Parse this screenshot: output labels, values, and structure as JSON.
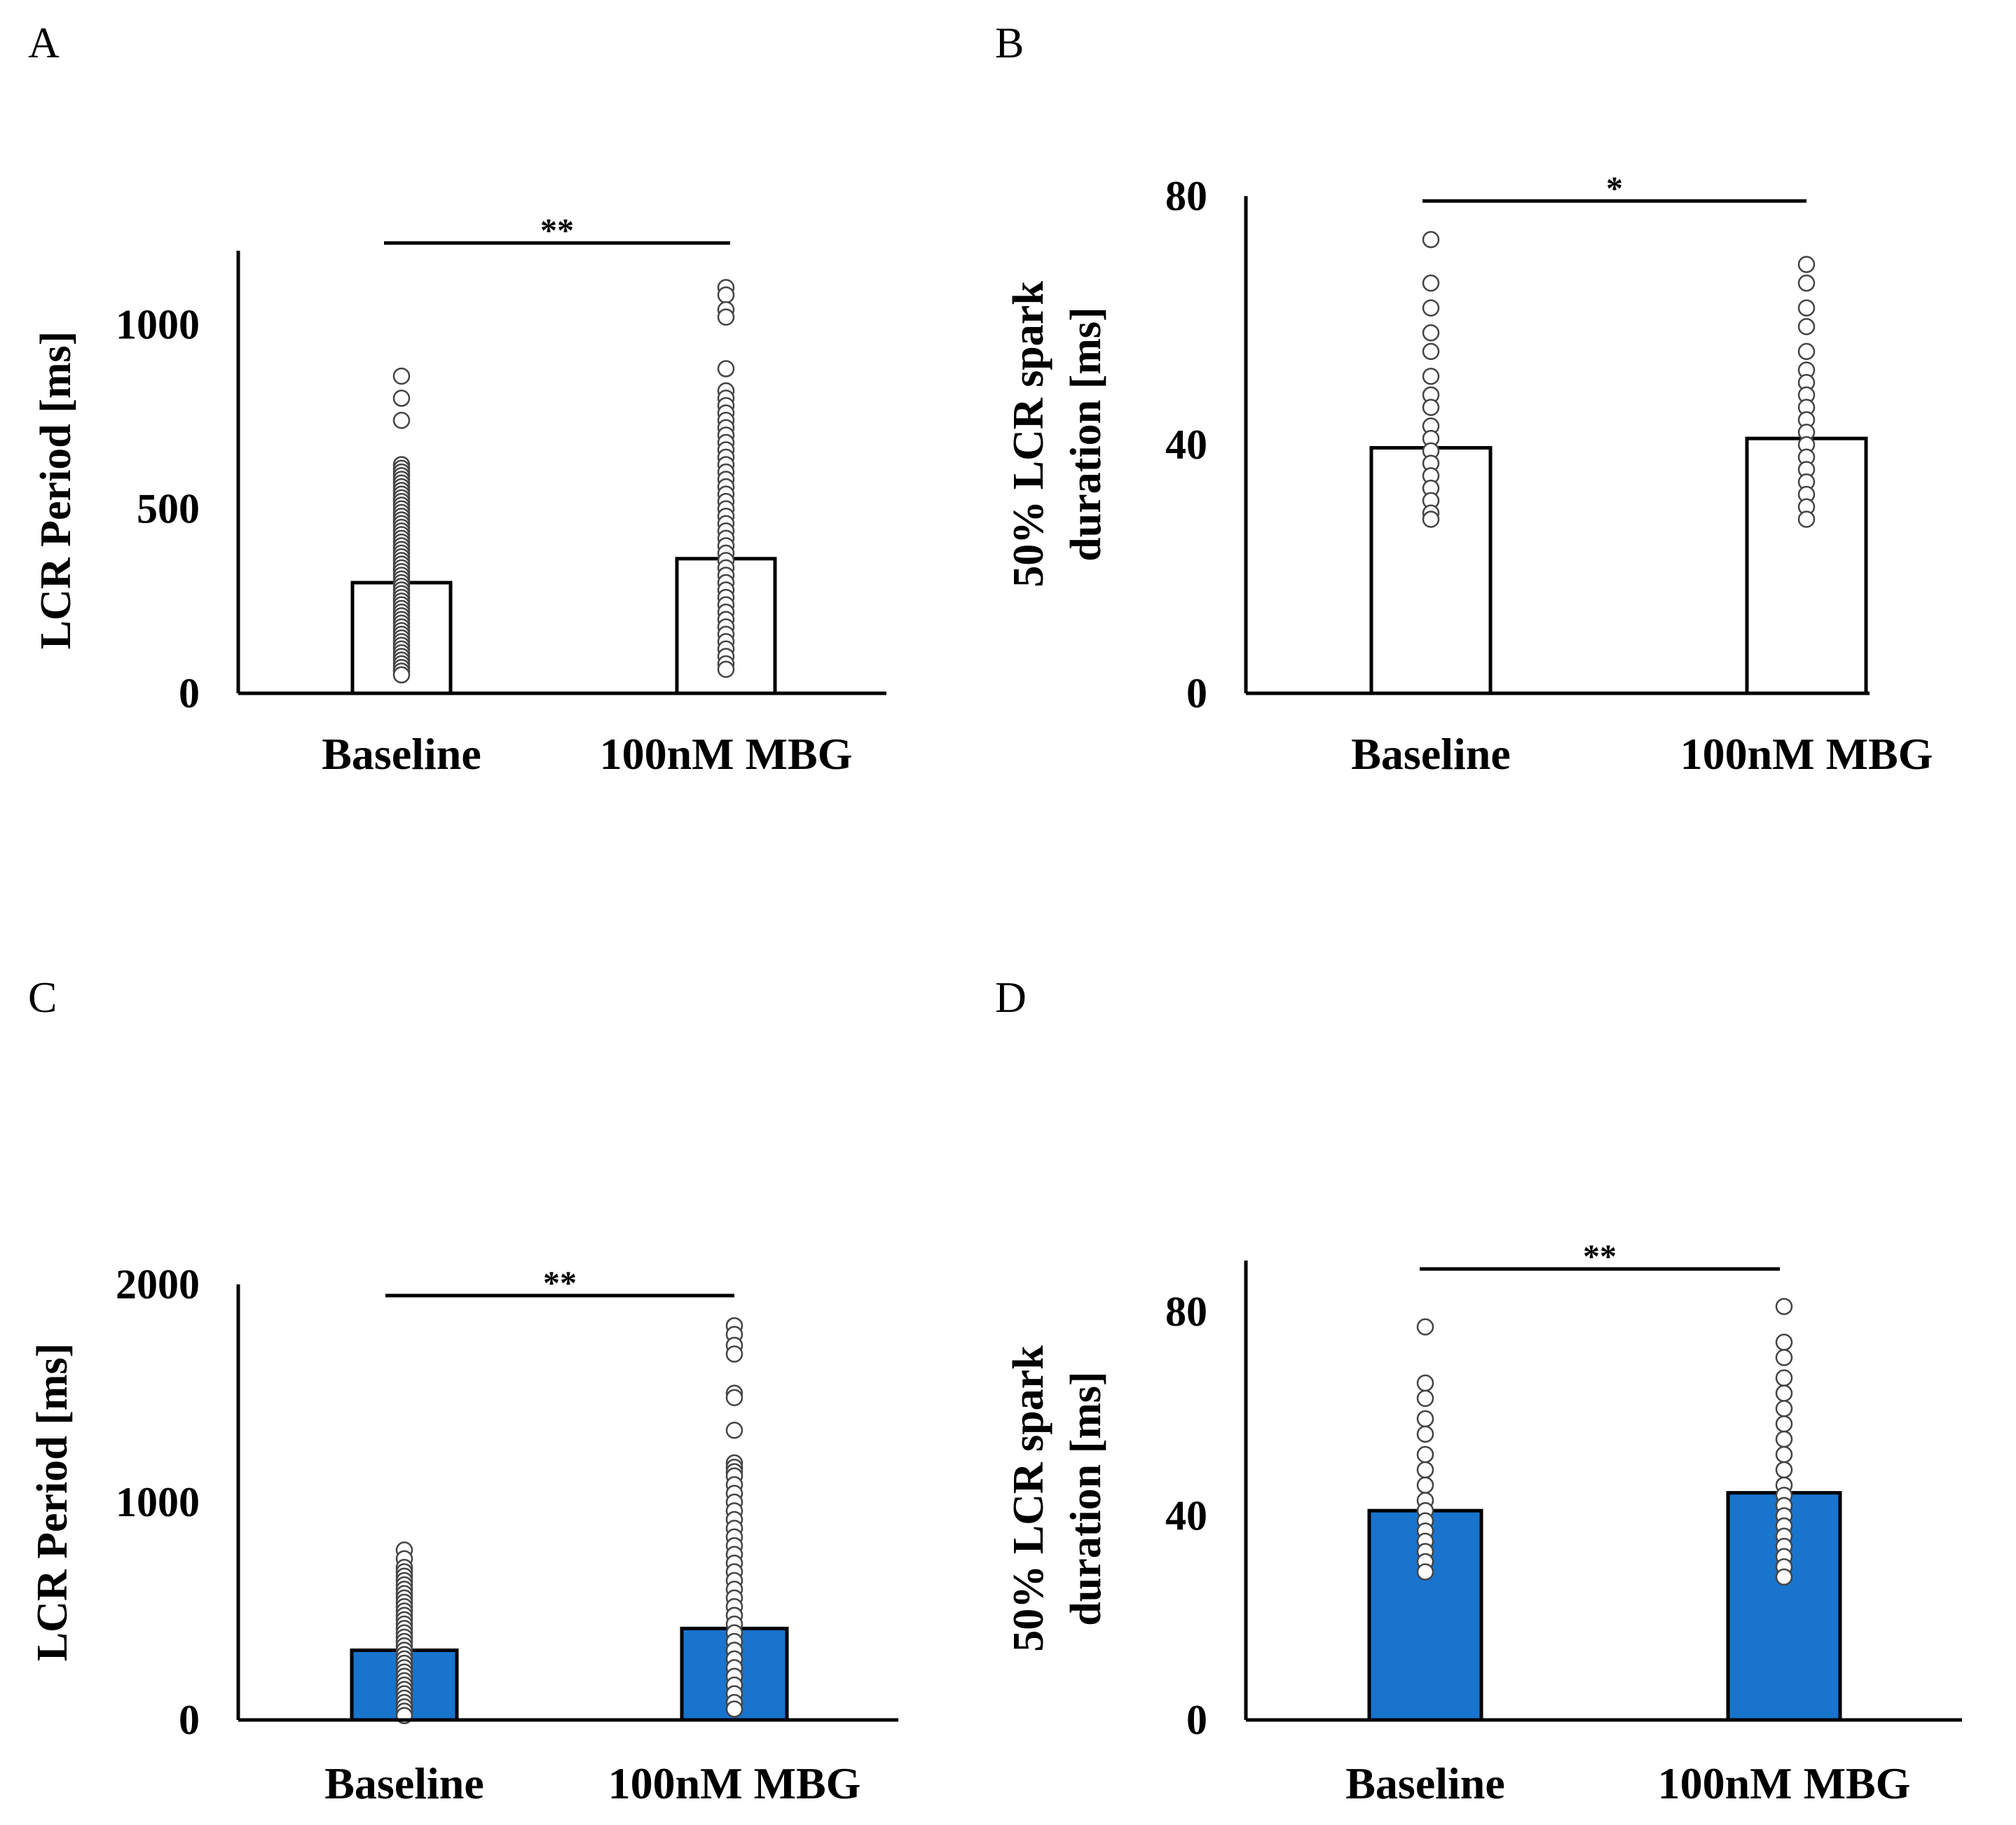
{
  "chart_data": [
    {
      "panel": "A",
      "type": "bar",
      "ylabel_lines": [
        "LCR Period [ms]"
      ],
      "yticks": [
        "0",
        "500",
        "1000"
      ],
      "ytick_values": [
        0,
        500,
        1000
      ],
      "ylim": [
        0,
        1200
      ],
      "categories": [
        "Baseline",
        "100nM MBG"
      ],
      "values": [
        300,
        365
      ],
      "bar_color": "#ffffff",
      "significance": "**",
      "points": [
        [
          860,
          800,
          740,
          620,
          610,
          600,
          590,
          580,
          570,
          560,
          550,
          540,
          530,
          520,
          510,
          500,
          490,
          480,
          470,
          460,
          450,
          440,
          430,
          420,
          410,
          400,
          390,
          380,
          370,
          360,
          350,
          340,
          330,
          320,
          310,
          300,
          290,
          280,
          270,
          260,
          250,
          240,
          230,
          220,
          210,
          200,
          190,
          180,
          170,
          160,
          150,
          140,
          130,
          120,
          110,
          100,
          90,
          80,
          70,
          60,
          50
        ],
        [
          1100,
          1080,
          1040,
          1020,
          880,
          820,
          800,
          780,
          760,
          740,
          720,
          700,
          680,
          660,
          640,
          620,
          600,
          580,
          560,
          540,
          520,
          500,
          480,
          460,
          440,
          420,
          400,
          380,
          360,
          340,
          320,
          300,
          280,
          260,
          240,
          220,
          200,
          180,
          160,
          140,
          120,
          100,
          80,
          65
        ]
      ]
    },
    {
      "panel": "B",
      "type": "bar",
      "ylabel_lines": [
        "50% LCR spark",
        "duration [ms]"
      ],
      "yticks": [
        "0",
        "40",
        "80"
      ],
      "ytick_values": [
        0,
        40,
        80
      ],
      "ylim": [
        0,
        80
      ],
      "categories": [
        "Baseline",
        "100nM MBG"
      ],
      "values": [
        39.5,
        41
      ],
      "bar_color": "#ffffff",
      "significance": "*",
      "points": [
        [
          73,
          66,
          62,
          58,
          55,
          51,
          48,
          46,
          43,
          41,
          39,
          37,
          35,
          33,
          31,
          29,
          28
        ],
        [
          69,
          66,
          62,
          59,
          55,
          52,
          50,
          48,
          46,
          44,
          42,
          40,
          38,
          36,
          34,
          32,
          30,
          28
        ]
      ]
    },
    {
      "panel": "C",
      "type": "bar",
      "ylabel_lines": [
        "LCR Period [ms]"
      ],
      "yticks": [
        "0",
        "1000",
        "2000"
      ],
      "ytick_values": [
        0,
        1000,
        2000
      ],
      "ylim": [
        0,
        2000
      ],
      "categories": [
        "Baseline",
        "100nM MBG"
      ],
      "values": [
        320,
        420
      ],
      "bar_color": "#1874CD",
      "significance": "**",
      "points": [
        [
          780,
          740,
          700,
          680,
          660,
          640,
          620,
          600,
          580,
          560,
          540,
          520,
          500,
          480,
          460,
          440,
          420,
          400,
          380,
          360,
          340,
          320,
          300,
          280,
          260,
          240,
          220,
          200,
          180,
          160,
          140,
          120,
          100,
          80,
          60,
          40,
          20
        ],
        [
          1810,
          1770,
          1720,
          1680,
          1500,
          1480,
          1330,
          1180,
          1160,
          1140,
          1120,
          1080,
          1040,
          1000,
          960,
          920,
          880,
          840,
          800,
          760,
          720,
          680,
          640,
          600,
          560,
          520,
          480,
          440,
          400,
          360,
          320,
          280,
          240,
          200,
          160,
          120,
          80,
          50
        ]
      ]
    },
    {
      "panel": "D",
      "type": "bar",
      "ylabel_lines": [
        "50% LCR spark",
        "duration [ms]"
      ],
      "yticks": [
        "0",
        "40",
        "80"
      ],
      "ytick_values": [
        0,
        40,
        80
      ],
      "ylim": [
        0,
        90
      ],
      "categories": [
        "Baseline",
        "100nM MBG"
      ],
      "values": [
        41,
        44.5
      ],
      "bar_color": "#1874CD",
      "significance": "**",
      "points": [
        [
          77,
          66,
          63,
          59,
          56,
          52,
          49,
          46,
          43,
          41,
          39,
          37,
          35,
          33,
          31,
          29
        ],
        [
          81,
          74,
          71,
          67,
          64,
          61,
          58,
          55,
          52,
          49,
          46,
          44,
          42,
          40,
          38,
          36,
          34,
          32,
          30,
          28
        ]
      ]
    }
  ]
}
